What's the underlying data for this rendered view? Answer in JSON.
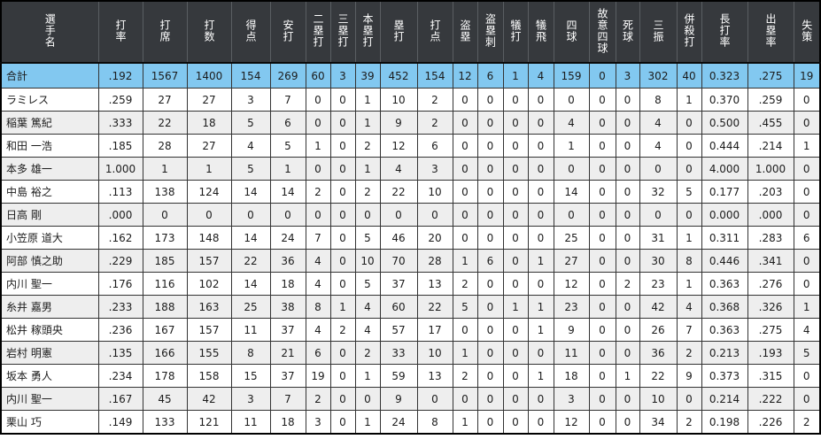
{
  "table": {
    "name_header": "選手名",
    "columns": [
      "打率",
      "打席",
      "打数",
      "得点",
      "安打",
      "二塁打",
      "三塁打",
      "本塁打",
      "塁打",
      "打点",
      "盗塁",
      "盗塁刺",
      "犠打",
      "犠飛",
      "四球",
      "故意四球",
      "死球",
      "三振",
      "併殺打",
      "長打率",
      "出塁率",
      "失策"
    ],
    "total_row": {
      "label": "合計",
      "values": [
        ".192",
        "1567",
        "1400",
        "154",
        "269",
        "60",
        "3",
        "39",
        "452",
        "154",
        "12",
        "6",
        "1",
        "4",
        "159",
        "0",
        "3",
        "302",
        "40",
        "0.323",
        ".275",
        "19"
      ]
    },
    "players": [
      {
        "name": "ラミレス",
        "values": [
          ".259",
          "27",
          "27",
          "3",
          "7",
          "0",
          "0",
          "1",
          "10",
          "2",
          "0",
          "0",
          "0",
          "0",
          "0",
          "0",
          "0",
          "8",
          "1",
          "0.370",
          ".259",
          "0"
        ]
      },
      {
        "name": "稲葉 篤紀",
        "values": [
          ".333",
          "22",
          "18",
          "5",
          "6",
          "0",
          "0",
          "1",
          "9",
          "2",
          "0",
          "0",
          "0",
          "0",
          "4",
          "0",
          "0",
          "4",
          "0",
          "0.500",
          ".455",
          "0"
        ]
      },
      {
        "name": "和田 一浩",
        "values": [
          ".185",
          "28",
          "27",
          "4",
          "5",
          "1",
          "0",
          "2",
          "12",
          "6",
          "0",
          "0",
          "0",
          "0",
          "1",
          "0",
          "0",
          "4",
          "0",
          "0.444",
          ".214",
          "1"
        ]
      },
      {
        "name": "本多 雄一",
        "values": [
          "1.000",
          "1",
          "1",
          "5",
          "1",
          "0",
          "0",
          "1",
          "4",
          "3",
          "0",
          "0",
          "0",
          "0",
          "0",
          "0",
          "0",
          "0",
          "0",
          "4.000",
          "1.000",
          "0"
        ]
      },
      {
        "name": "中島 裕之",
        "values": [
          ".113",
          "138",
          "124",
          "14",
          "14",
          "2",
          "0",
          "2",
          "22",
          "10",
          "0",
          "0",
          "0",
          "0",
          "14",
          "0",
          "0",
          "32",
          "5",
          "0.177",
          ".203",
          "0"
        ]
      },
      {
        "name": "日高 剛",
        "values": [
          ".000",
          "0",
          "0",
          "0",
          "0",
          "0",
          "0",
          "0",
          "0",
          "0",
          "0",
          "0",
          "0",
          "0",
          "0",
          "0",
          "0",
          "0",
          "0",
          "0.000",
          ".000",
          "0"
        ]
      },
      {
        "name": "小笠原 道大",
        "values": [
          ".162",
          "173",
          "148",
          "14",
          "24",
          "7",
          "0",
          "5",
          "46",
          "20",
          "0",
          "0",
          "0",
          "0",
          "25",
          "0",
          "0",
          "31",
          "1",
          "0.311",
          ".283",
          "6"
        ]
      },
      {
        "name": "阿部 慎之助",
        "values": [
          ".229",
          "185",
          "157",
          "22",
          "36",
          "4",
          "0",
          "10",
          "70",
          "28",
          "1",
          "6",
          "0",
          "1",
          "27",
          "0",
          "0",
          "30",
          "8",
          "0.446",
          ".341",
          "0"
        ]
      },
      {
        "name": "内川 聖一",
        "values": [
          ".176",
          "116",
          "102",
          "14",
          "18",
          "4",
          "0",
          "5",
          "37",
          "13",
          "2",
          "0",
          "0",
          "0",
          "12",
          "0",
          "2",
          "23",
          "1",
          "0.363",
          ".276",
          "0"
        ]
      },
      {
        "name": "糸井 嘉男",
        "values": [
          ".233",
          "188",
          "163",
          "25",
          "38",
          "8",
          "1",
          "4",
          "60",
          "22",
          "5",
          "0",
          "1",
          "1",
          "23",
          "0",
          "0",
          "42",
          "4",
          "0.368",
          ".326",
          "1"
        ]
      },
      {
        "name": "松井 稼頭央",
        "values": [
          ".236",
          "167",
          "157",
          "11",
          "37",
          "4",
          "2",
          "4",
          "57",
          "17",
          "0",
          "0",
          "0",
          "1",
          "9",
          "0",
          "0",
          "26",
          "7",
          "0.363",
          ".275",
          "4"
        ]
      },
      {
        "name": "岩村 明憲",
        "values": [
          ".135",
          "166",
          "155",
          "8",
          "21",
          "6",
          "0",
          "2",
          "33",
          "10",
          "1",
          "0",
          "0",
          "0",
          "11",
          "0",
          "0",
          "36",
          "2",
          "0.213",
          ".193",
          "5"
        ]
      },
      {
        "name": "坂本 勇人",
        "values": [
          ".234",
          "178",
          "158",
          "15",
          "37",
          "19",
          "0",
          "1",
          "59",
          "13",
          "2",
          "0",
          "0",
          "1",
          "18",
          "0",
          "1",
          "22",
          "9",
          "0.373",
          ".315",
          "0"
        ]
      },
      {
        "name": "内川 聖一",
        "values": [
          ".167",
          "45",
          "42",
          "3",
          "7",
          "2",
          "0",
          "0",
          "9",
          "0",
          "0",
          "0",
          "0",
          "0",
          "3",
          "0",
          "0",
          "10",
          "0",
          "0.214",
          ".222",
          "0"
        ]
      },
      {
        "name": "栗山 巧",
        "values": [
          ".149",
          "133",
          "121",
          "11",
          "18",
          "3",
          "0",
          "1",
          "24",
          "8",
          "1",
          "0",
          "0",
          "0",
          "12",
          "0",
          "0",
          "34",
          "2",
          "0.198",
          ".226",
          "2"
        ]
      }
    ],
    "colors": {
      "header_bg": "#36393d",
      "header_text": "#ffffff",
      "total_row_bg": "#82c8f0",
      "alt_row_bg": "#eeeeee",
      "border": "#333333"
    }
  }
}
